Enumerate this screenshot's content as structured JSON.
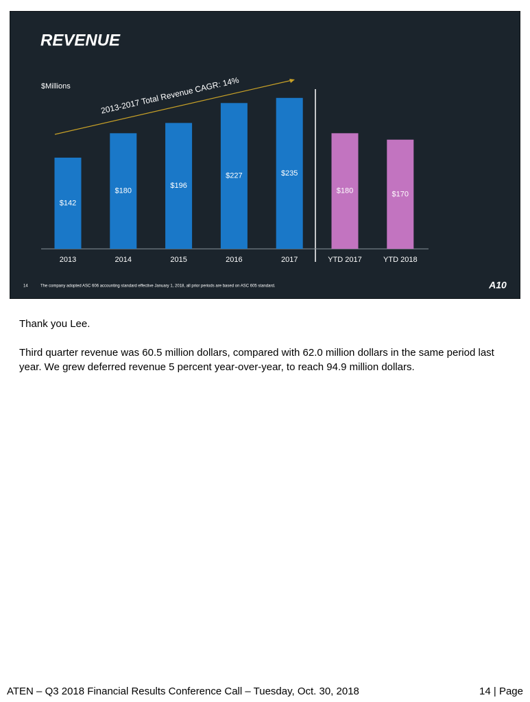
{
  "slide": {
    "title": "REVENUE",
    "unit_label": "$Millions",
    "annotation": "2013-2017 Total Revenue CAGR: 14%",
    "slide_number": "14",
    "footnote": "The company adopted ASC 606 accounting standard effective January 1, 2018, all prior periods are based on ASC 605 standard.",
    "logo": "A10"
  },
  "chart_data": {
    "type": "bar",
    "categories": [
      "2013",
      "2014",
      "2015",
      "2016",
      "2017",
      "YTD 2017",
      "YTD 2018"
    ],
    "values": [
      142,
      180,
      196,
      227,
      235,
      180,
      170
    ],
    "value_labels": [
      "$142",
      "$180",
      "$196",
      "$227",
      "$235",
      "$180",
      "$170"
    ],
    "colors": [
      "#1a78c8",
      "#1a78c8",
      "#1a78c8",
      "#1a78c8",
      "#1a78c8",
      "#c274c0",
      "#c274c0"
    ]
  },
  "body": {
    "paragraphs": [
      "Thank you Lee.",
      "Third quarter revenue was 60.5 million dollars, compared with 62.0 million dollars in the same period last year.  We grew deferred revenue 5 percent year-over-year, to reach 94.9 million dollars."
    ]
  },
  "footer": {
    "left": "ATEN – Q3 2018 Financial Results Conference Call – Tuesday, Oct. 30, 2018",
    "right": "14 | Page"
  }
}
